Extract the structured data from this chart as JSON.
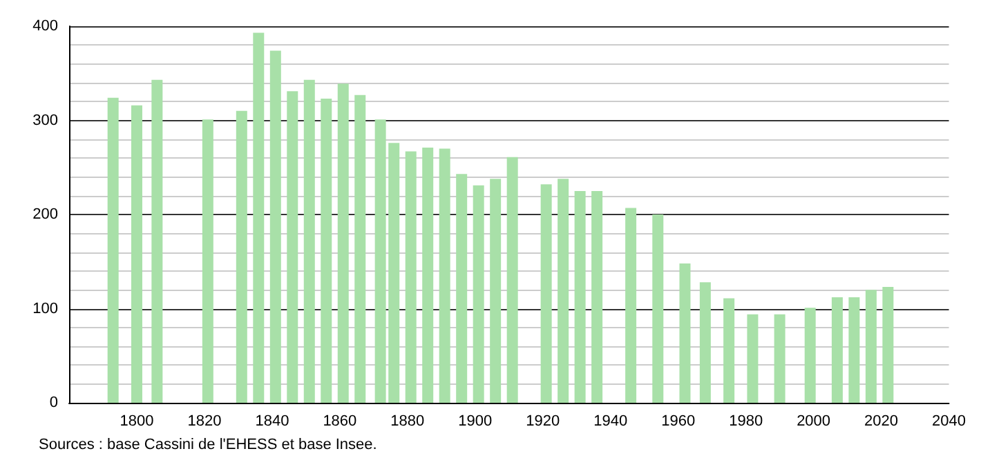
{
  "chart_data": {
    "type": "bar",
    "x": [
      1793,
      1800,
      1806,
      1821,
      1831,
      1836,
      1841,
      1846,
      1851,
      1856,
      1861,
      1866,
      1872,
      1876,
      1881,
      1886,
      1891,
      1896,
      1901,
      1906,
      1911,
      1921,
      1926,
      1931,
      1936,
      1946,
      1954,
      1962,
      1968,
      1975,
      1982,
      1990,
      1999,
      2007,
      2012,
      2017,
      2022
    ],
    "values": [
      324,
      316,
      343,
      301,
      310,
      393,
      374,
      331,
      343,
      323,
      339,
      327,
      301,
      276,
      267,
      271,
      270,
      243,
      231,
      238,
      261,
      232,
      238,
      225,
      225,
      207,
      200,
      148,
      128,
      111,
      94,
      94,
      101,
      112,
      112,
      120,
      123
    ],
    "color": "#a8e0a8",
    "xlim": [
      1780,
      2040
    ],
    "xticks": [
      1800,
      1820,
      1840,
      1860,
      1880,
      1900,
      1920,
      1940,
      1960,
      1980,
      2000,
      2020,
      2040
    ],
    "ylim": [
      0,
      400
    ],
    "yticks": [
      0,
      {
        "value": 20,
        "label": null
      },
      {
        "value": 40,
        "label": null
      },
      {
        "value": 60,
        "label": null
      },
      {
        "value": 80,
        "label": null
      },
      100,
      {
        "value": 120,
        "label": null
      },
      {
        "value": 140,
        "label": null
      },
      {
        "value": 160,
        "label": null
      },
      {
        "value": 180,
        "label": null
      },
      200,
      {
        "value": 220,
        "label": null
      },
      {
        "value": 240,
        "label": null
      },
      {
        "value": 260,
        "label": null
      },
      {
        "value": 280,
        "label": null
      },
      300,
      {
        "value": 320,
        "label": null
      },
      {
        "value": 340,
        "label": null
      },
      {
        "value": 360,
        "label": null
      },
      {
        "value": 380,
        "label": null
      },
      400
    ],
    "grid": "y",
    "annotations": [
      "Sources : base Cassini de l'EHESS et base Insee."
    ]
  }
}
